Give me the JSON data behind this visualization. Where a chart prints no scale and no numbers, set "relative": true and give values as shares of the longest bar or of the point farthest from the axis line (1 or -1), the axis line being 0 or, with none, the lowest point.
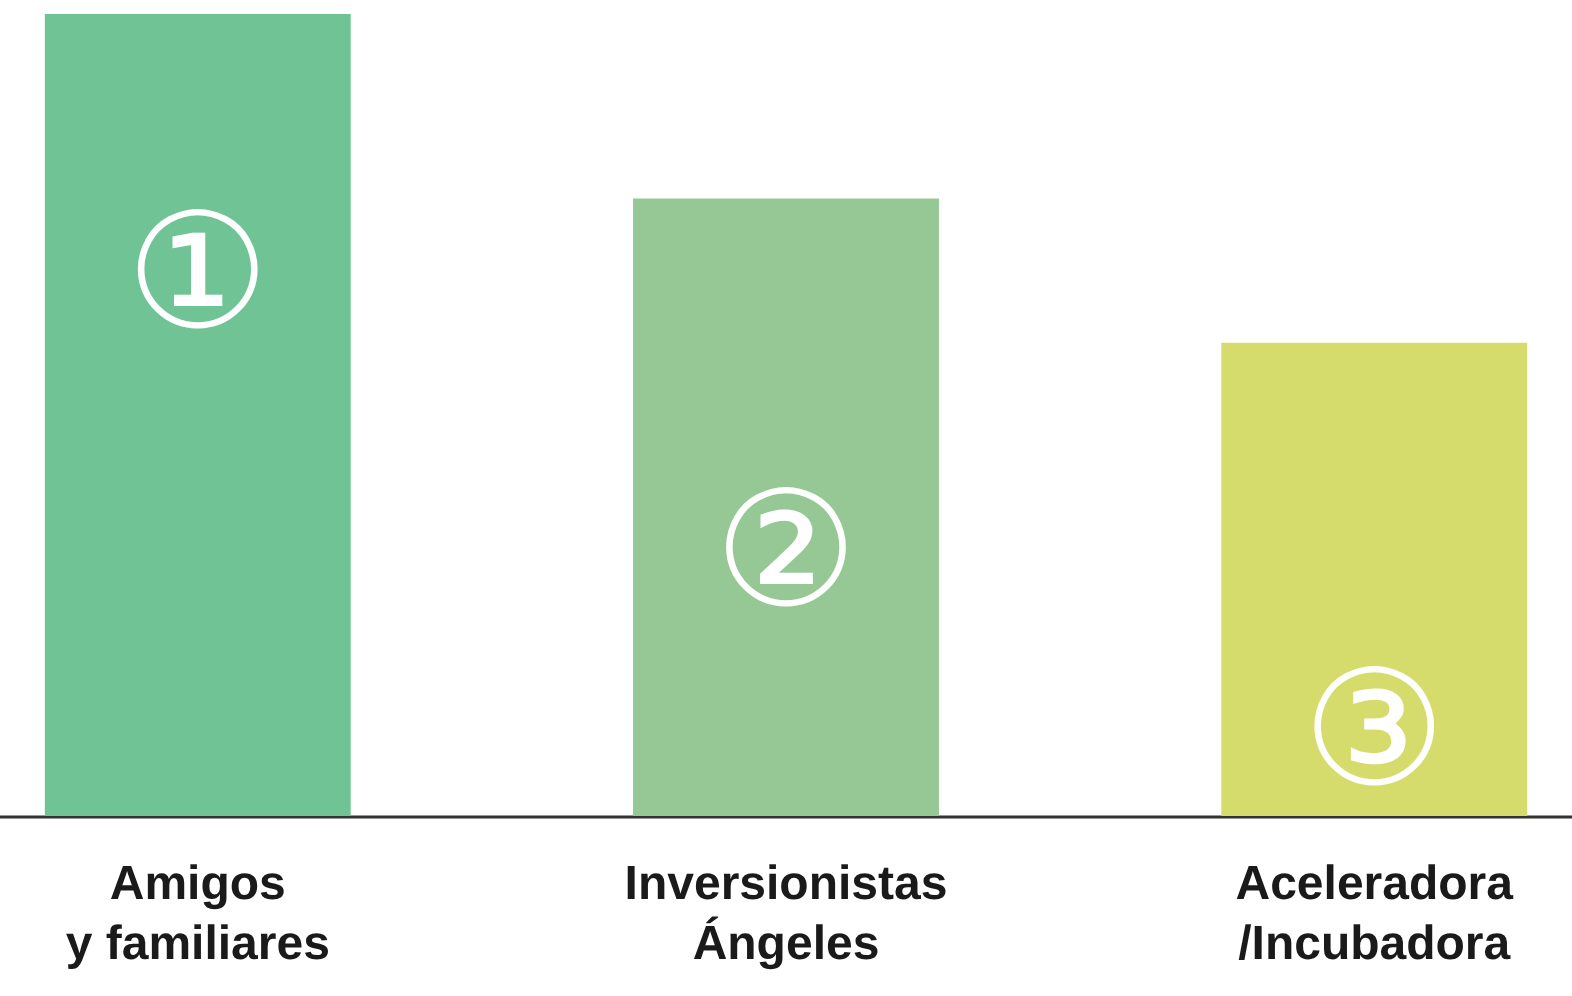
{
  "chart_data": {
    "type": "bar",
    "relative": true,
    "categories": [
      "Amigos\ny familiares",
      "Inversionistas\nÁngeles",
      "Aceleradora\n/Incubadora"
    ],
    "values": [
      1,
      0.77,
      0.59
    ],
    "colors": [
      "#6fc394",
      "#95c894",
      "#d6dc6b"
    ],
    "annotations": [
      "①",
      "②",
      "③"
    ]
  }
}
